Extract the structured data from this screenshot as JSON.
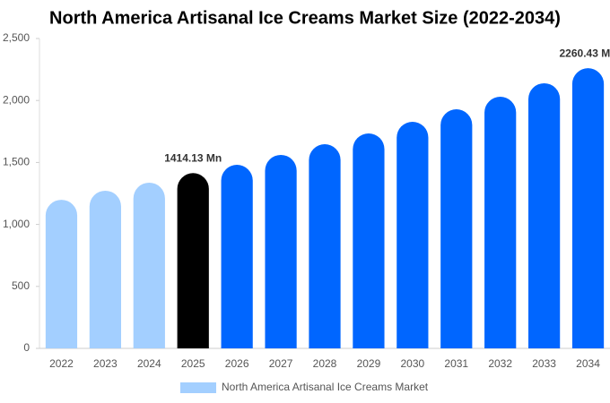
{
  "chart_data": {
    "type": "bar",
    "title": "North America Artisanal Ice Creams Market Size (2022-2034)",
    "categories": [
      "2022",
      "2023",
      "2024",
      "2025",
      "2026",
      "2027",
      "2028",
      "2029",
      "2030",
      "2031",
      "2032",
      "2033",
      "2034"
    ],
    "series": [
      {
        "name": "North America Artisanal Ice Creams Market",
        "color": "#a3cfff",
        "colors": [
          "#a3cfff",
          "#a3cfff",
          "#a3cfff",
          "#000000",
          "#0066ff",
          "#0066ff",
          "#0066ff",
          "#0066ff",
          "#0066ff",
          "#0066ff",
          "#0066ff",
          "#0066ff",
          "#0066ff"
        ],
        "values": [
          1199,
          1272,
          1337,
          1414.13,
          1481,
          1561,
          1647,
          1734,
          1828,
          1929,
          2030,
          2139,
          2260.43
        ],
        "value_labels": [
          null,
          null,
          null,
          "1414.13 Mn",
          null,
          null,
          null,
          null,
          null,
          null,
          null,
          null,
          "2260.43 Mn"
        ]
      }
    ],
    "ylim": [
      0,
      2500
    ],
    "yticks": [
      0,
      500,
      {
        "value": 1000,
        "label": "1,000"
      },
      {
        "value": 1500,
        "label": "1,500"
      },
      {
        "value": 2000,
        "label": "2,000"
      },
      {
        "value": 2500,
        "label": "2,500"
      }
    ],
    "grid": false
  }
}
